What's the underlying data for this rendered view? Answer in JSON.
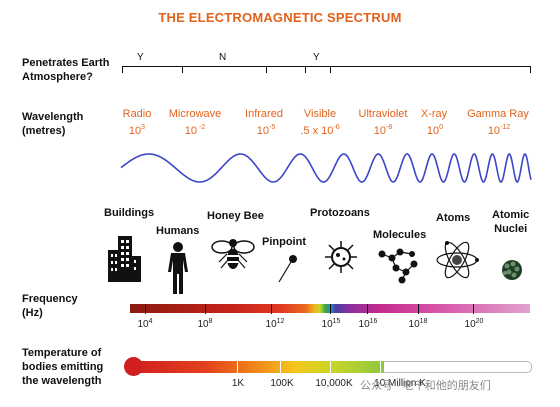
{
  "title": "THE ELECTROMAGNETIC SPECTRUM",
  "rows": {
    "atmosphere": "Penetrates Earth\nAtmosphere?",
    "wavelength": "Wavelength\n(metres)",
    "frequency": "Frequency\n(Hz)",
    "temperature": "Temperature of\nbodies emitting\nthe wavelength"
  },
  "atmosphere_marks": [
    "Y",
    "N",
    "Y"
  ],
  "bands": [
    {
      "name": "Radio",
      "base": "10",
      "exp": "3"
    },
    {
      "name": "Microwave",
      "base": "10",
      "exp": " -2"
    },
    {
      "name": "Infrared",
      "base": "10",
      "exp": "-5"
    },
    {
      "name": "Visible",
      "base": ".5 x 10",
      "exp": "-6"
    },
    {
      "name": "Ultraviolet",
      "base": "10",
      "exp": "-8"
    },
    {
      "name": "X-ray",
      "base": "10",
      "exp": "0"
    },
    {
      "name": "Gamma Ray",
      "base": "10",
      "exp": "-12"
    }
  ],
  "objects": [
    "Buildings",
    "Humans",
    "Honey Bee",
    "Pinpoint",
    "Protozoans",
    "Molecules",
    "Atoms",
    "Atomic\nNuclei"
  ],
  "frequency_labels": [
    {
      "base": "10",
      "exp": "4"
    },
    {
      "base": "10",
      "exp": "8"
    },
    {
      "base": "10",
      "exp": "12"
    },
    {
      "base": "10",
      "exp": "15"
    },
    {
      "base": "10",
      "exp": "16"
    },
    {
      "base": "10",
      "exp": "18"
    },
    {
      "base": "10",
      "exp": "20"
    }
  ],
  "temperature_labels": [
    "1K",
    "100K",
    "10,000K",
    "10 Million K"
  ],
  "watermark": "公众号 · 老千和他的朋友们",
  "colors": {
    "accent": "#e2621b",
    "wave": "#3b45c8"
  },
  "icons": [
    "buildings-icon",
    "human-icon",
    "bee-icon",
    "pin-icon",
    "protozoan-icon",
    "molecule-icon",
    "atom-icon",
    "nucleus-icon"
  ]
}
